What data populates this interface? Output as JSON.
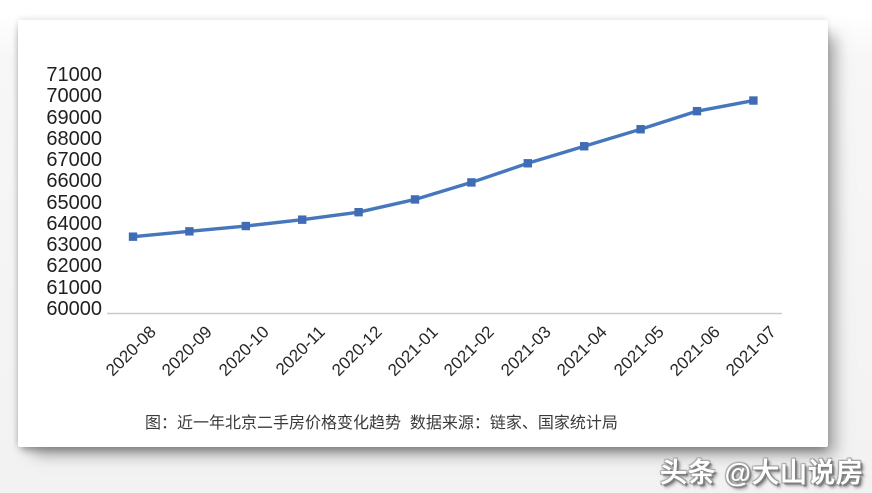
{
  "caption": {
    "text": "图：近一年北京二手房价格变化趋势  数据来源：链家、国家统计局"
  },
  "watermark": {
    "text": "头条 @大山说房"
  },
  "chart_data": {
    "type": "line",
    "title": "近一年北京二手房价格变化趋势",
    "source": "链家、国家统计局",
    "categories": [
      "2020-08",
      "2020-09",
      "2020-10",
      "2020-11",
      "2020-12",
      "2021-01",
      "2021-02",
      "2021-03",
      "2021-04",
      "2021-05",
      "2021-06",
      "2021-07"
    ],
    "values": [
      63400,
      63650,
      63900,
      64200,
      64550,
      65150,
      65950,
      66850,
      67650,
      68450,
      69300,
      69800
    ],
    "ylim": [
      60000,
      71000
    ],
    "ytick_step": 1000,
    "grid": false,
    "legend_position": "none",
    "marker": "square",
    "line_color": "#4676bc",
    "marker_color": "#3f6cb4",
    "axis_line_color": "#c9c9c9"
  }
}
